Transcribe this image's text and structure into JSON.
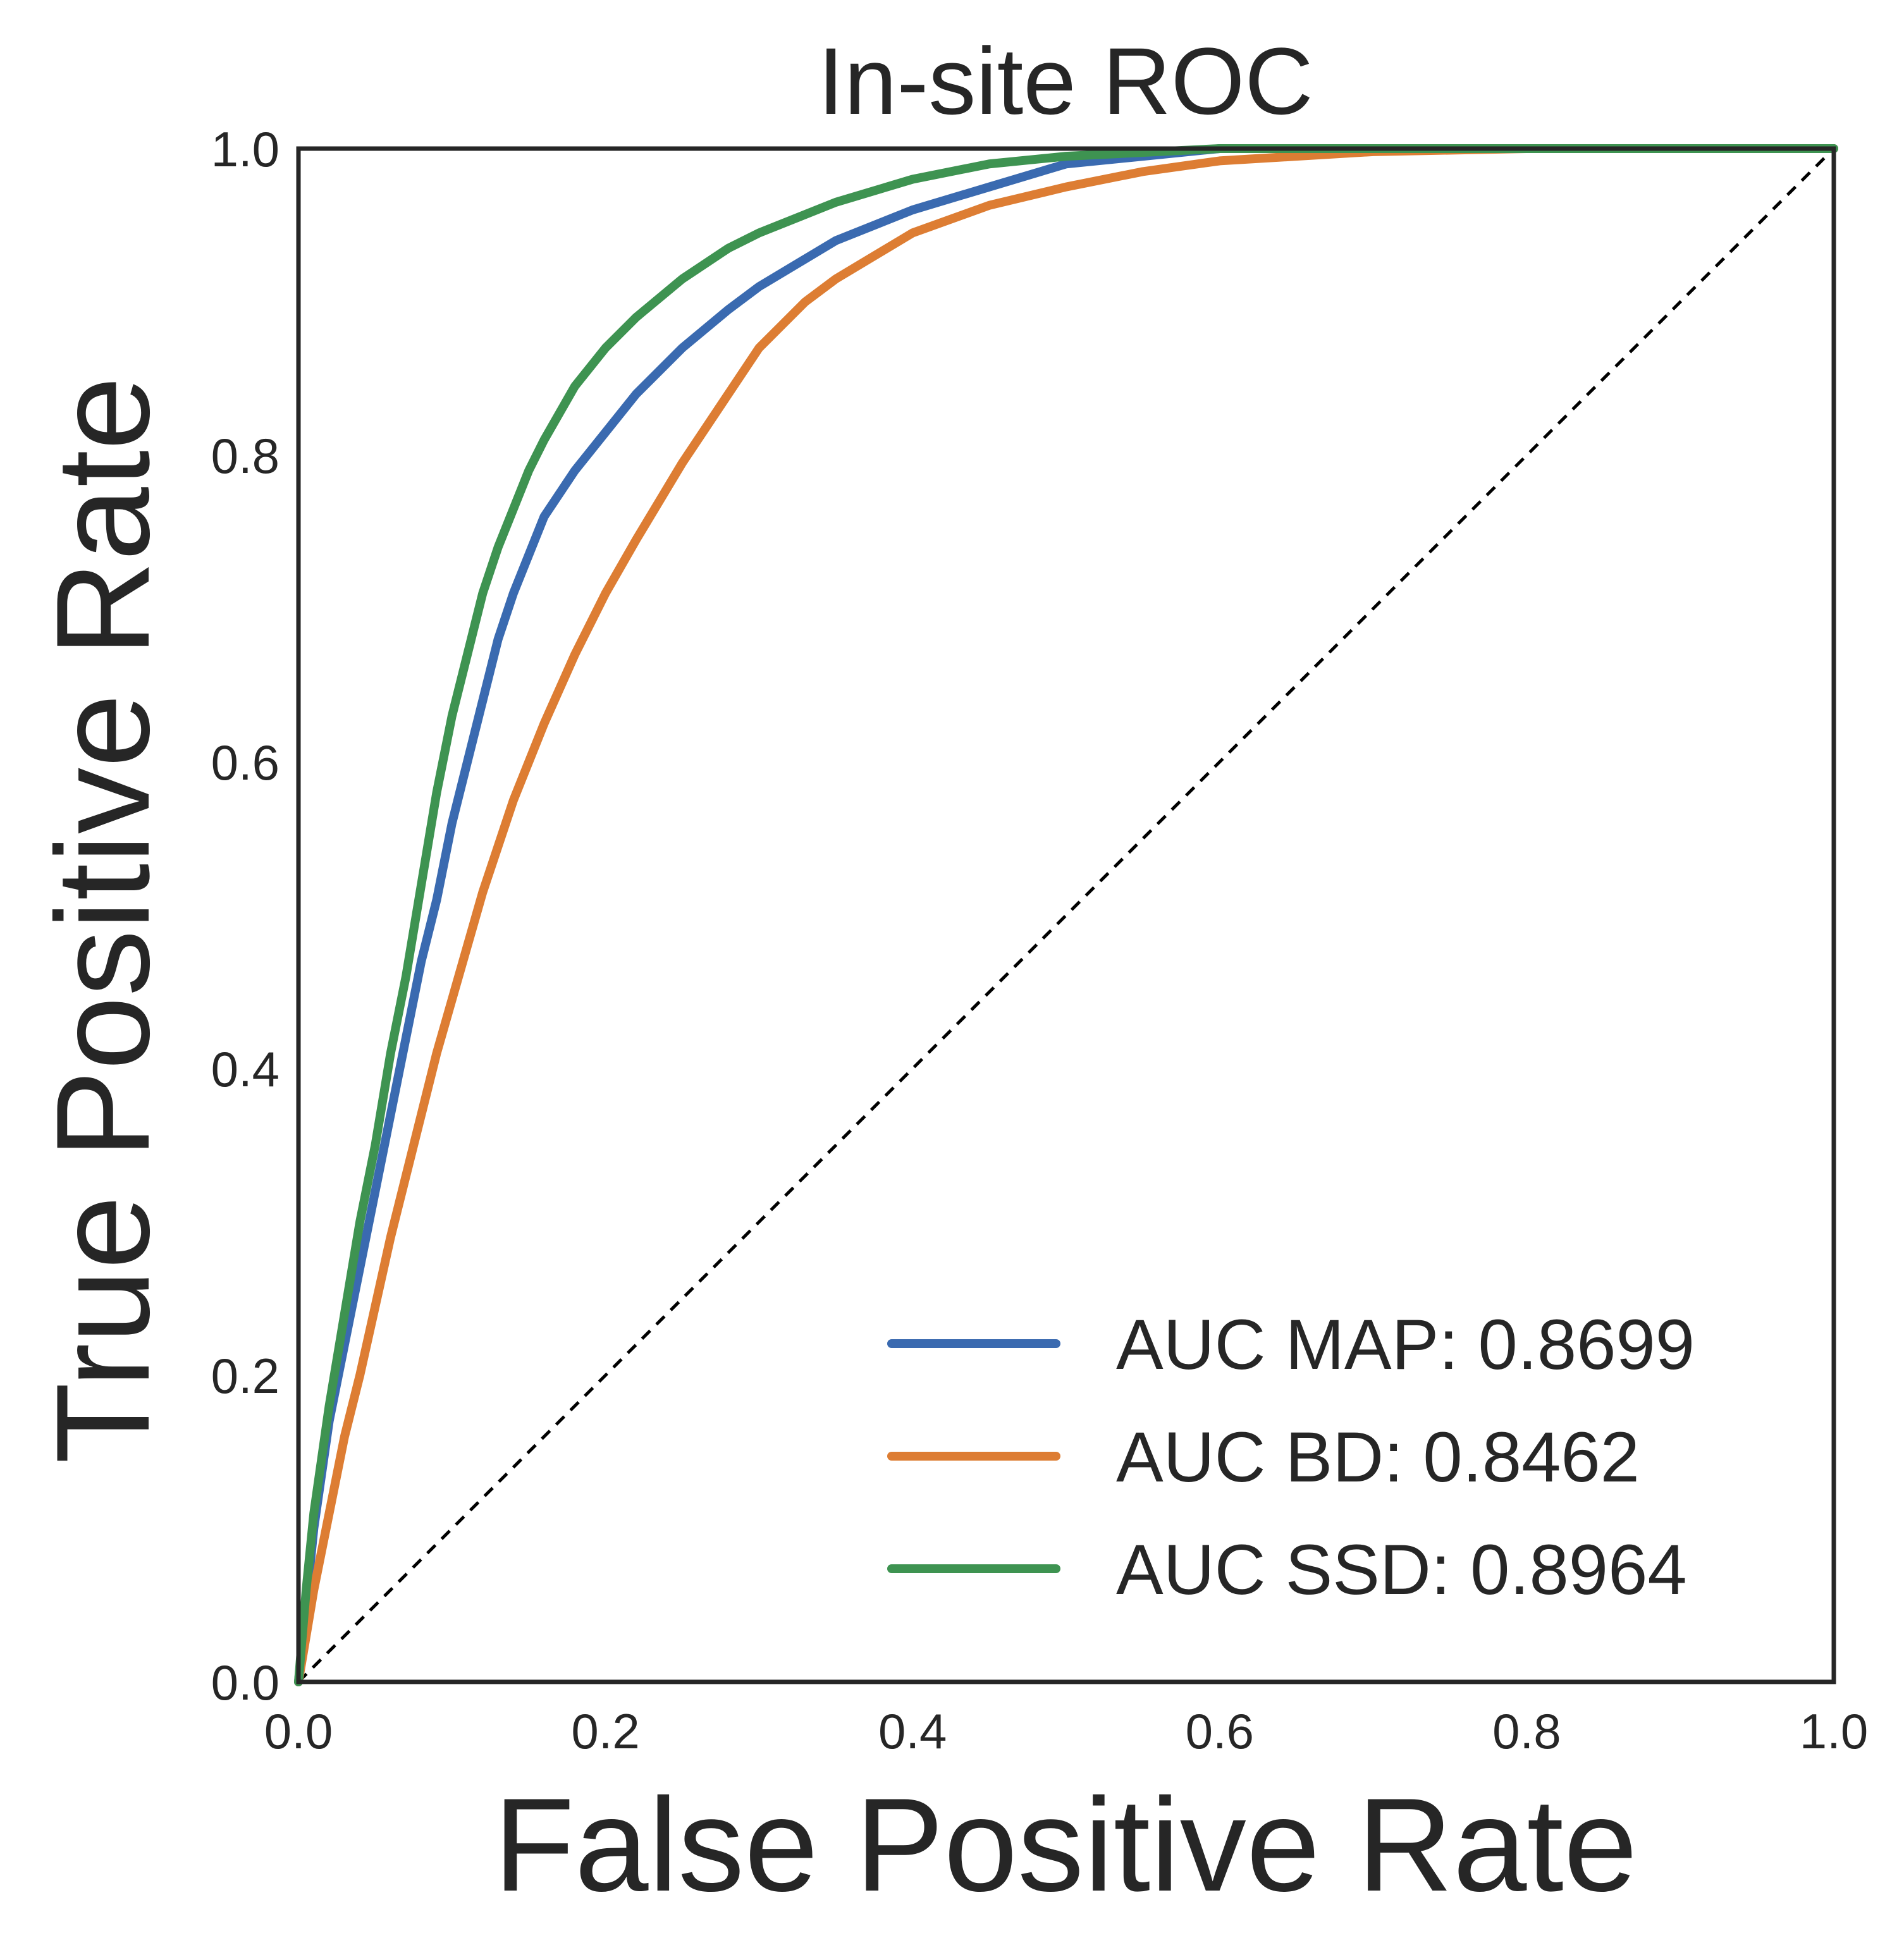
{
  "chart_data": {
    "type": "line",
    "title": "In-site ROC",
    "xlabel": "False Positive Rate",
    "ylabel": "True Positive Rate",
    "xlim": [
      0.0,
      1.0
    ],
    "ylim": [
      0.0,
      1.0
    ],
    "xticks": [
      "0.0",
      "0.2",
      "0.4",
      "0.6",
      "0.8",
      "1.0"
    ],
    "yticks": [
      "0.0",
      "0.2",
      "0.4",
      "0.6",
      "0.8",
      "1.0"
    ],
    "grid": false,
    "legend_position": "lower-right",
    "reference_line": {
      "style": "dashed",
      "color": "#000000",
      "points": [
        [
          0.0,
          0.0
        ],
        [
          1.0,
          1.0
        ]
      ]
    },
    "series": [
      {
        "name": "AUC MAP: 0.8699",
        "color": "#3a6ab0",
        "points": [
          [
            0.0,
            0.0
          ],
          [
            0.005,
            0.05
          ],
          [
            0.01,
            0.1
          ],
          [
            0.02,
            0.17
          ],
          [
            0.03,
            0.22
          ],
          [
            0.04,
            0.27
          ],
          [
            0.05,
            0.32
          ],
          [
            0.06,
            0.37
          ],
          [
            0.07,
            0.42
          ],
          [
            0.08,
            0.47
          ],
          [
            0.09,
            0.51
          ],
          [
            0.1,
            0.56
          ],
          [
            0.11,
            0.6
          ],
          [
            0.12,
            0.64
          ],
          [
            0.13,
            0.68
          ],
          [
            0.14,
            0.71
          ],
          [
            0.15,
            0.735
          ],
          [
            0.16,
            0.76
          ],
          [
            0.18,
            0.79
          ],
          [
            0.2,
            0.815
          ],
          [
            0.22,
            0.84
          ],
          [
            0.25,
            0.87
          ],
          [
            0.28,
            0.895
          ],
          [
            0.3,
            0.91
          ],
          [
            0.35,
            0.94
          ],
          [
            0.4,
            0.96
          ],
          [
            0.45,
            0.975
          ],
          [
            0.5,
            0.99
          ],
          [
            0.55,
            0.995
          ],
          [
            0.6,
            1.0
          ],
          [
            0.7,
            1.0
          ],
          [
            0.8,
            1.0
          ],
          [
            0.9,
            1.0
          ],
          [
            1.0,
            1.0
          ]
        ]
      },
      {
        "name": "AUC BD: 0.8462",
        "color": "#dd7d33",
        "points": [
          [
            0.0,
            0.0
          ],
          [
            0.01,
            0.06
          ],
          [
            0.02,
            0.11
          ],
          [
            0.03,
            0.16
          ],
          [
            0.04,
            0.2
          ],
          [
            0.05,
            0.245
          ],
          [
            0.06,
            0.29
          ],
          [
            0.07,
            0.33
          ],
          [
            0.08,
            0.37
          ],
          [
            0.09,
            0.41
          ],
          [
            0.1,
            0.445
          ],
          [
            0.12,
            0.515
          ],
          [
            0.14,
            0.575
          ],
          [
            0.16,
            0.625
          ],
          [
            0.18,
            0.67
          ],
          [
            0.2,
            0.71
          ],
          [
            0.22,
            0.745
          ],
          [
            0.25,
            0.795
          ],
          [
            0.28,
            0.84
          ],
          [
            0.3,
            0.87
          ],
          [
            0.33,
            0.9
          ],
          [
            0.35,
            0.915
          ],
          [
            0.4,
            0.945
          ],
          [
            0.45,
            0.963
          ],
          [
            0.5,
            0.975
          ],
          [
            0.55,
            0.985
          ],
          [
            0.6,
            0.992
          ],
          [
            0.7,
            0.998
          ],
          [
            0.8,
            1.0
          ],
          [
            0.9,
            1.0
          ],
          [
            1.0,
            1.0
          ]
        ]
      },
      {
        "name": "AUC SSD: 0.8964",
        "color": "#3e9351",
        "points": [
          [
            0.0,
            0.0
          ],
          [
            0.005,
            0.06
          ],
          [
            0.01,
            0.11
          ],
          [
            0.02,
            0.18
          ],
          [
            0.03,
            0.24
          ],
          [
            0.04,
            0.3
          ],
          [
            0.05,
            0.35
          ],
          [
            0.06,
            0.41
          ],
          [
            0.07,
            0.46
          ],
          [
            0.08,
            0.52
          ],
          [
            0.09,
            0.58
          ],
          [
            0.1,
            0.63
          ],
          [
            0.11,
            0.67
          ],
          [
            0.12,
            0.71
          ],
          [
            0.13,
            0.74
          ],
          [
            0.14,
            0.765
          ],
          [
            0.15,
            0.79
          ],
          [
            0.16,
            0.81
          ],
          [
            0.18,
            0.845
          ],
          [
            0.2,
            0.87
          ],
          [
            0.22,
            0.89
          ],
          [
            0.25,
            0.915
          ],
          [
            0.28,
            0.935
          ],
          [
            0.3,
            0.945
          ],
          [
            0.35,
            0.965
          ],
          [
            0.4,
            0.98
          ],
          [
            0.45,
            0.99
          ],
          [
            0.5,
            0.995
          ],
          [
            0.6,
            1.0
          ],
          [
            0.7,
            1.0
          ],
          [
            0.8,
            1.0
          ],
          [
            0.9,
            1.0
          ],
          [
            1.0,
            1.0
          ]
        ]
      }
    ]
  }
}
